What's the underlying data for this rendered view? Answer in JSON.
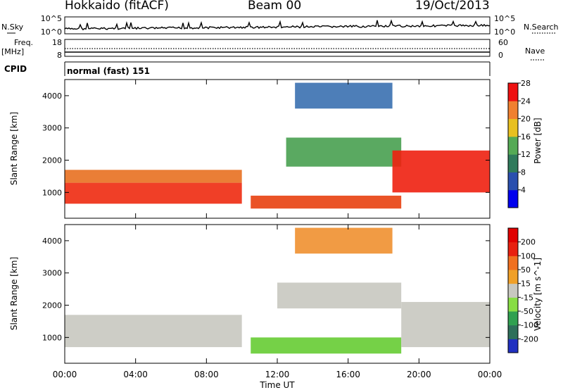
{
  "header": {
    "site": "Hokkaido (fitACF)",
    "beam": "Beam 00",
    "date": "19/Oct/2013"
  },
  "top_panels": {
    "nsky_label": "N.Sky",
    "nsearch_label": "N.Search",
    "noise_ticks": [
      "10^5",
      "10^0"
    ],
    "freq_label_1": "Freq.",
    "freq_label_2": "[MHz]",
    "freq_ticks": [
      "18",
      "8"
    ],
    "nave_label": "Nave",
    "nave_ticks": [
      "60",
      "0"
    ],
    "cpid_label": "CPID",
    "cpid_value": "normal (fast) 151"
  },
  "chart_data": [
    {
      "type": "heatmap",
      "title": "",
      "quantity": "Power",
      "xlabel": "",
      "ylabel": "Slant Range [km]",
      "x_ticks": [
        "00:00",
        "04:00",
        "08:00",
        "12:00",
        "16:00",
        "20:00",
        "00:00"
      ],
      "xlim_hours": [
        0,
        24
      ],
      "ylim": [
        200,
        4500
      ],
      "y_ticks": [
        "1000",
        "2000",
        "3000",
        "4000"
      ],
      "y_tick_values": [
        1000,
        2000,
        3000,
        4000
      ],
      "colorbar_label": "Power [dB]",
      "colorbar_ticks": [
        "4",
        "8",
        "12",
        "16",
        "20",
        "24",
        "28"
      ],
      "colorbar_colors": [
        "#0000ee",
        "#2a4fae",
        "#2f7a5b",
        "#55aa55",
        "#e8c020",
        "#f08030",
        "#ee1111"
      ],
      "regions": [
        {
          "name": "dawn-low-band",
          "t_start": 0,
          "t_end": 10,
          "r_low": 650,
          "r_high": 1300,
          "color": "#ee2a10"
        },
        {
          "name": "dawn-upper-band",
          "t_start": 0,
          "t_end": 10,
          "r_low": 1300,
          "r_high": 1700,
          "color": "#e87020"
        },
        {
          "name": "midday-low-band",
          "t_start": 10.5,
          "t_end": 19,
          "r_low": 500,
          "r_high": 900,
          "color": "#e84010"
        },
        {
          "name": "midday-upper-arc",
          "t_start": 12.5,
          "t_end": 19,
          "r_low": 1800,
          "r_high": 2700,
          "color": "#48a050"
        },
        {
          "name": "dusk-band",
          "t_start": 18.5,
          "t_end": 24,
          "r_low": 1000,
          "r_high": 2300,
          "color": "#ee2010"
        },
        {
          "name": "high-range-arc",
          "t_start": 13,
          "t_end": 18.5,
          "r_low": 3600,
          "r_high": 4400,
          "color": "#3a70b0"
        }
      ]
    },
    {
      "type": "heatmap",
      "title": "",
      "quantity": "Velocity",
      "xlabel": "Time UT",
      "ylabel": "Slant Range [km]",
      "x_ticks": [
        "00:00",
        "04:00",
        "08:00",
        "12:00",
        "16:00",
        "20:00",
        "00:00"
      ],
      "xlim_hours": [
        0,
        24
      ],
      "ylim": [
        200,
        4500
      ],
      "y_ticks": [
        "1000",
        "2000",
        "3000",
        "4000"
      ],
      "y_tick_values": [
        1000,
        2000,
        3000,
        4000
      ],
      "colorbar_label": "Velocity [m s^-1]",
      "colorbar_ticks": [
        "200",
        "100",
        "50",
        "15",
        "-15",
        "-50",
        "-100",
        "-200"
      ],
      "colorbar_colors": [
        "#2030c0",
        "#2e6f5a",
        "#30a050",
        "#88dd44",
        "#c8c8c0",
        "#f0a028",
        "#f07020",
        "#e82010",
        "#e00000"
      ],
      "regions": [
        {
          "name": "dawn-band",
          "t_start": 0,
          "t_end": 10,
          "r_low": 700,
          "r_high": 1700,
          "color": "#c8c8c0"
        },
        {
          "name": "midday-low-band",
          "t_start": 10.5,
          "t_end": 19,
          "r_low": 500,
          "r_high": 1000,
          "color": "#66cc33"
        },
        {
          "name": "midday-upper-arc",
          "t_start": 12,
          "t_end": 19,
          "r_low": 1900,
          "r_high": 2700,
          "color": "#c8c8c0"
        },
        {
          "name": "dusk-band",
          "t_start": 19,
          "t_end": 24,
          "r_low": 700,
          "r_high": 2100,
          "color": "#c8c8c0"
        },
        {
          "name": "high-range-arc",
          "t_start": 13,
          "t_end": 18.5,
          "r_low": 3600,
          "r_high": 4400,
          "color": "#f09030"
        }
      ]
    }
  ]
}
